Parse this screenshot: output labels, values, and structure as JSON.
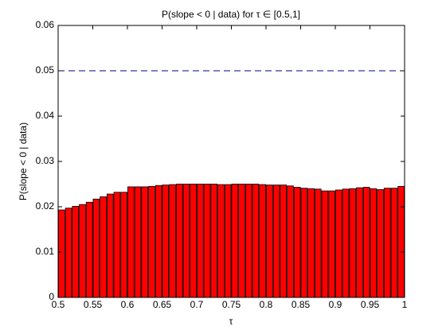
{
  "chart_data": {
    "type": "bar",
    "title": "P(slope < 0 | data) for τ ∈ [0.5,1]",
    "x_label": "τ",
    "y_label": "P(slope < 0 | data)",
    "x": [
      0.505,
      0.515,
      0.525,
      0.535,
      0.545,
      0.555,
      0.565,
      0.575,
      0.585,
      0.595,
      0.605,
      0.615,
      0.625,
      0.635,
      0.645,
      0.655,
      0.665,
      0.675,
      0.685,
      0.695,
      0.705,
      0.715,
      0.725,
      0.735,
      0.745,
      0.755,
      0.765,
      0.775,
      0.785,
      0.795,
      0.805,
      0.815,
      0.825,
      0.835,
      0.845,
      0.855,
      0.865,
      0.875,
      0.885,
      0.895,
      0.905,
      0.915,
      0.925,
      0.935,
      0.945,
      0.955,
      0.965,
      0.975,
      0.985,
      0.995
    ],
    "values": [
      0.0193,
      0.0197,
      0.0201,
      0.0205,
      0.021,
      0.0217,
      0.0222,
      0.0228,
      0.0232,
      0.0232,
      0.0244,
      0.0244,
      0.0244,
      0.0245,
      0.0247,
      0.0248,
      0.0249,
      0.025,
      0.025,
      0.025,
      0.025,
      0.025,
      0.025,
      0.0249,
      0.0249,
      0.025,
      0.025,
      0.025,
      0.025,
      0.0249,
      0.0248,
      0.0248,
      0.0248,
      0.0246,
      0.0243,
      0.0241,
      0.024,
      0.0239,
      0.0235,
      0.0235,
      0.0237,
      0.0239,
      0.024,
      0.0242,
      0.0243,
      0.024,
      0.0238,
      0.0241,
      0.0241,
      0.0245
    ],
    "color": "#ff0000",
    "reference_line": {
      "value": 0.05,
      "color": "#00008b"
    },
    "xlim": [
      0.5,
      1
    ],
    "xticks": [
      0.5,
      0.55,
      0.6,
      0.65,
      0.7,
      0.75,
      0.8,
      0.85,
      0.9,
      0.95,
      1
    ],
    "ylim": [
      0,
      0.06
    ],
    "yticks": [
      0,
      0.01,
      0.02,
      0.03,
      0.04,
      0.05,
      0.06
    ],
    "grid": false
  }
}
